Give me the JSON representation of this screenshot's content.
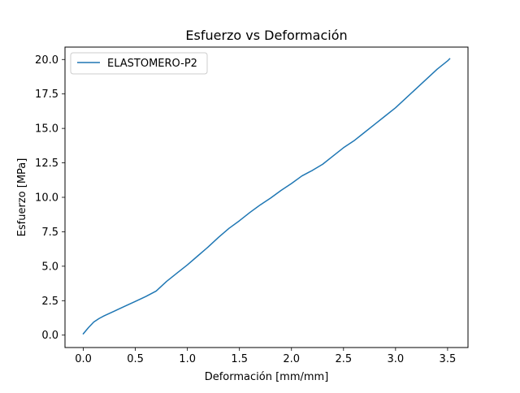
{
  "chart_data": {
    "type": "line",
    "title": "Esfuerzo vs Deformación",
    "xlabel": "Deformación [mm/mm]",
    "ylabel": "Esfuerzo [MPa]",
    "xlim": [
      -0.176,
      3.696
    ],
    "ylim": [
      -0.9,
      20.9
    ],
    "xticks": [
      0.0,
      0.5,
      1.0,
      1.5,
      2.0,
      2.5,
      3.0,
      3.5
    ],
    "xtick_labels": [
      "0.0",
      "0.5",
      "1.0",
      "1.5",
      "2.0",
      "2.5",
      "3.0",
      "3.5"
    ],
    "yticks": [
      0.0,
      2.5,
      5.0,
      7.5,
      10.0,
      12.5,
      15.0,
      17.5,
      20.0
    ],
    "ytick_labels": [
      "0.0",
      "2.5",
      "5.0",
      "7.5",
      "10.0",
      "12.5",
      "15.0",
      "17.5",
      "20.0"
    ],
    "grid": false,
    "legend_position": "upper-left",
    "series": [
      {
        "name": "ELASTOMERO-P2",
        "color": "#1f77b4",
        "x": [
          0.0,
          0.05,
          0.1,
          0.15,
          0.2,
          0.3,
          0.4,
          0.5,
          0.6,
          0.7,
          0.8,
          0.9,
          1.0,
          1.1,
          1.2,
          1.3,
          1.4,
          1.5,
          1.6,
          1.7,
          1.8,
          1.9,
          2.0,
          2.1,
          2.2,
          2.3,
          2.4,
          2.5,
          2.6,
          2.7,
          2.8,
          2.9,
          3.0,
          3.1,
          3.2,
          3.3,
          3.4,
          3.5,
          3.52
        ],
        "y": [
          0.1,
          0.55,
          0.95,
          1.2,
          1.4,
          1.75,
          2.1,
          2.45,
          2.8,
          3.2,
          3.9,
          4.5,
          5.1,
          5.75,
          6.4,
          7.1,
          7.75,
          8.3,
          8.9,
          9.45,
          9.95,
          10.5,
          11.0,
          11.55,
          11.95,
          12.4,
          13.0,
          13.6,
          14.1,
          14.7,
          15.3,
          15.9,
          16.5,
          17.2,
          17.9,
          18.6,
          19.3,
          19.9,
          20.05
        ]
      }
    ]
  }
}
